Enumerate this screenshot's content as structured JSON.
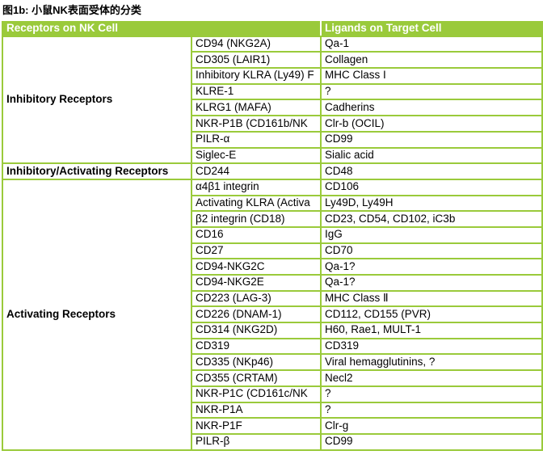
{
  "title": "图1b: 小鼠NK表面受体的分类",
  "colors": {
    "accent_green": "#9aca3b",
    "header_text": "#ffffff",
    "body_text": "#000000"
  },
  "table": {
    "headers": [
      "Receptors on NK Cell",
      "Ligands on Target Cell"
    ],
    "groups": [
      {
        "label": "Inhibitory Receptors",
        "rows": [
          [
            "CD94 (NKG2A)",
            "Qa-1"
          ],
          [
            "CD305 (LAIR1)",
            "Collagen"
          ],
          [
            "Inhibitory KLRA (Ly49) F",
            "MHC Class I"
          ],
          [
            "KLRE-1",
            "?"
          ],
          [
            "KLRG1 (MAFA)",
            "Cadherins"
          ],
          [
            "NKR-P1B (CD161b/NK",
            "Clr-b (OCIL)"
          ],
          [
            "PILR-α",
            "CD99"
          ],
          [
            "Siglec-E",
            "Sialic acid"
          ]
        ]
      },
      {
        "label": "Inhibitory/Activating Receptors",
        "rows": [
          [
            "CD244",
            "CD48"
          ]
        ]
      },
      {
        "label": "Activating Receptors",
        "rows": [
          [
            "α4β1 integrin",
            "CD106"
          ],
          [
            "Activating KLRA (Activa",
            "Ly49D, Ly49H"
          ],
          [
            "β2 integrin (CD18)",
            "CD23, CD54, CD102, iC3b"
          ],
          [
            "CD16",
            "IgG"
          ],
          [
            "CD27",
            "CD70"
          ],
          [
            "CD94-NKG2C",
            "Qa-1?"
          ],
          [
            "CD94-NKG2E",
            "Qa-1?"
          ],
          [
            "CD223 (LAG-3)",
            "MHC Class Ⅱ"
          ],
          [
            "CD226 (DNAM-1)",
            "CD112, CD155 (PVR)"
          ],
          [
            "CD314 (NKG2D)",
            "H60, Rae1, MULT-1"
          ],
          [
            "CD319",
            "CD319"
          ],
          [
            "CD335 (NKp46)",
            "Viral hemagglutinins, ?"
          ],
          [
            "CD355 (CRTAM)",
            "Necl2"
          ],
          [
            "NKR-P1C (CD161c/NK",
            "?"
          ],
          [
            "NKR-P1A",
            "?"
          ],
          [
            "NKR-P1F",
            "Clr-g"
          ],
          [
            "PILR-β",
            "CD99"
          ]
        ]
      }
    ]
  }
}
